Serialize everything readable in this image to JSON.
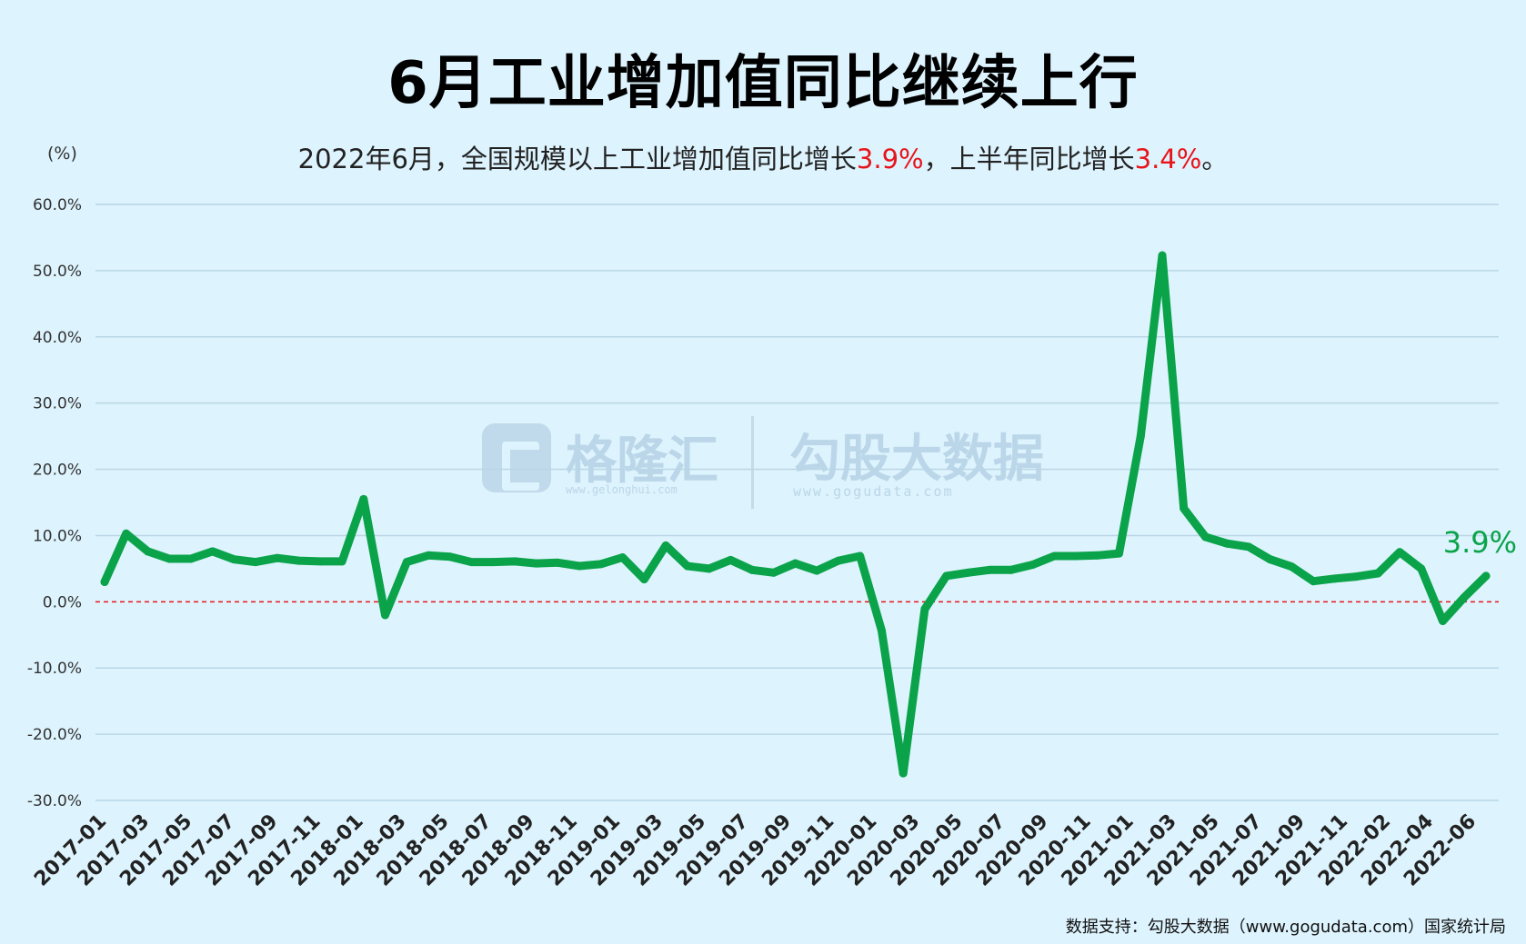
{
  "title": "6月工业增加值同比继续上行",
  "subtitle": {
    "part1": "2022年6月，全国规模以上工业增加值同比增长",
    "value1": "3.9%",
    "part2": "，上半年同比增长",
    "value2": "3.4%",
    "part3": "。"
  },
  "unit_label": "(%)",
  "watermark": {
    "brand1": "格隆汇",
    "brand1_url": "www.gelonghui.com",
    "brand2": "勾股大数据",
    "brand2_url": "www.gogudata.com"
  },
  "source": "数据支持：勾股大数据（www.gogudata.com）国家统计局",
  "colors": {
    "line": "#0aa34a",
    "zero_line": "#e8141b",
    "grid": "#b9d6e6",
    "highlight": "#e8141b"
  },
  "chart_data": {
    "type": "line",
    "ylim": [
      -30,
      60
    ],
    "yticks": [
      60,
      50,
      40,
      30,
      20,
      10,
      0,
      -10,
      -20,
      -30
    ],
    "ytick_labels": [
      "60.0%",
      "50.0%",
      "40.0%",
      "30.0%",
      "20.0%",
      "10.0%",
      "0.0%",
      "-10.0%",
      "-20.0%",
      "-30.0%"
    ],
    "xtick_labels": [
      "2017-01",
      "2017-03",
      "2017-05",
      "2017-07",
      "2017-09",
      "2017-11",
      "2018-01",
      "2018-03",
      "2018-05",
      "2018-07",
      "2018-09",
      "2018-11",
      "2019-01",
      "2019-03",
      "2019-05",
      "2019-07",
      "2019-09",
      "2019-11",
      "2020-01",
      "2020-03",
      "2020-05",
      "2020-07",
      "2020-09",
      "2020-11",
      "2021-01",
      "2021-03",
      "2021-05",
      "2021-07",
      "2021-09",
      "2021-11",
      "2022-02",
      "2022-04",
      "2022-06"
    ],
    "series": [
      {
        "values": [
          3.0,
          10.3,
          7.6,
          6.5,
          6.5,
          7.6,
          6.4,
          6.0,
          6.6,
          6.2,
          6.1,
          6.1,
          15.5,
          -2.0,
          6.0,
          7.0,
          6.8,
          6.0,
          6.0,
          6.1,
          5.8,
          5.9,
          5.4,
          5.7,
          6.7,
          3.4,
          8.5,
          5.4,
          5.0,
          6.3,
          4.8,
          4.4,
          5.8,
          4.7,
          6.2,
          6.9,
          -4.3,
          -25.9,
          -1.1,
          3.9,
          4.4,
          4.8,
          4.8,
          5.6,
          6.9,
          6.9,
          7.0,
          7.3,
          25.0,
          52.3,
          14.1,
          9.8,
          8.8,
          8.3,
          6.4,
          5.3,
          3.1,
          3.5,
          3.8,
          4.3,
          7.5,
          5.0,
          -2.9,
          0.7,
          3.9
        ]
      }
    ],
    "end_label": "3.9%"
  }
}
